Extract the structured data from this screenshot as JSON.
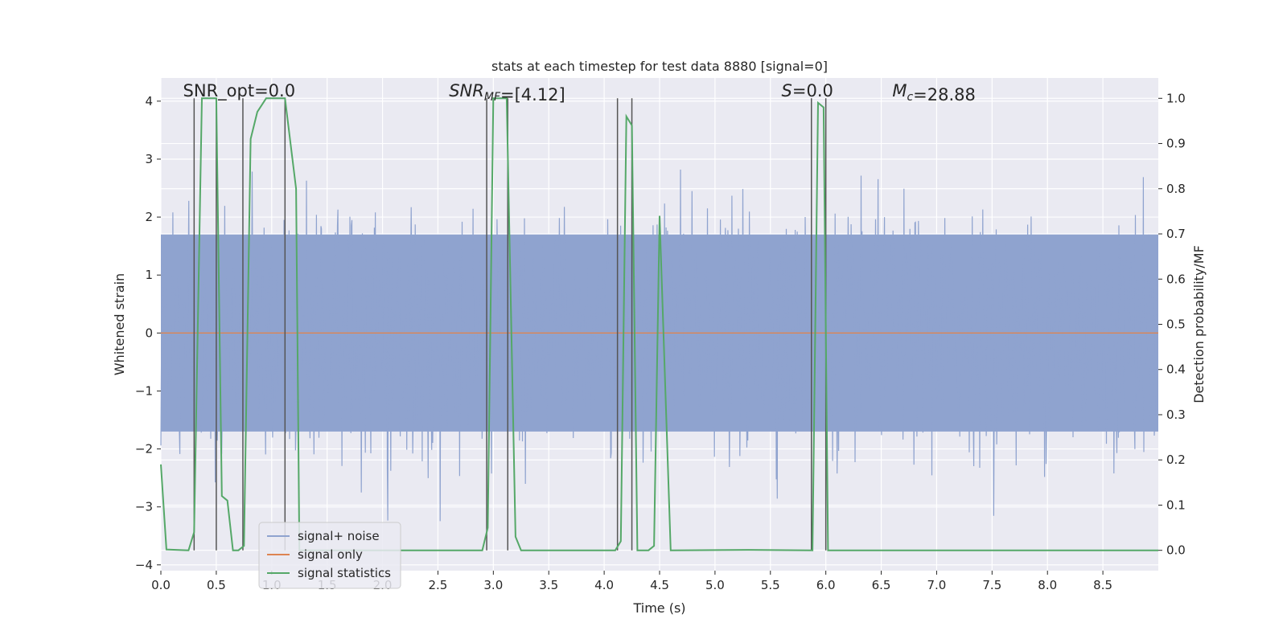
{
  "chart_data": {
    "type": "line",
    "title": "stats at each timestep for test data 8880 [signal=0]",
    "xlabel": "Time (s)",
    "ylabel": "Whitened strain",
    "y2label": "Detection probability/MF",
    "xlim": [
      0,
      9.0
    ],
    "ylim": [
      -4.1,
      4.4
    ],
    "y2lim": [
      -0.045,
      1.045
    ],
    "xticks": [
      0.0,
      0.5,
      1.0,
      1.5,
      2.0,
      2.5,
      3.0,
      3.5,
      4.0,
      4.5,
      5.0,
      5.5,
      6.0,
      6.5,
      7.0,
      7.5,
      8.0,
      8.5
    ],
    "xtick_labels": [
      "0.0",
      "0.5",
      "1.0",
      "1.5",
      "2.0",
      "2.5",
      "3.0",
      "3.5",
      "4.0",
      "4.5",
      "5.0",
      "5.5",
      "6.0",
      "6.5",
      "7.0",
      "7.5",
      "8.0",
      "8.5"
    ],
    "yticks": [
      -4,
      -3,
      -2,
      -1,
      0,
      1,
      2,
      3,
      4
    ],
    "ytick_labels": [
      "−4",
      "−3",
      "−2",
      "−1",
      "0",
      "1",
      "2",
      "3",
      "4"
    ],
    "y2ticks": [
      0.0,
      0.1,
      0.2,
      0.3,
      0.4,
      0.5,
      0.6,
      0.7,
      0.8,
      0.9,
      1.0
    ],
    "y2tick_labels": [
      "0.0",
      "0.1",
      "0.2",
      "0.3",
      "0.4",
      "0.5",
      "0.6",
      "0.7",
      "0.8",
      "0.9",
      "1.0"
    ],
    "annotations": [
      {
        "name": "snr-opt",
        "x": 0.2,
        "y": 4.05,
        "parts": [
          {
            "text": "SNR_opt=0.0",
            "style": "normal"
          }
        ]
      },
      {
        "name": "snr-mf",
        "x": 2.6,
        "y": 4.05,
        "parts": [
          {
            "text": "SNR",
            "style": "italic"
          },
          {
            "text": "MF",
            "style": "italic-sub"
          },
          {
            "text": "=[4.12]",
            "style": "normal"
          }
        ]
      },
      {
        "name": "s-value",
        "x": 5.6,
        "y": 4.05,
        "parts": [
          {
            "text": "S",
            "style": "italic"
          },
          {
            "text": "=0.0",
            "style": "normal"
          }
        ]
      },
      {
        "name": "chirp-mass",
        "x": 6.6,
        "y": 4.05,
        "parts": [
          {
            "text": "M",
            "style": "italic"
          },
          {
            "text": "c",
            "style": "italic-sub"
          },
          {
            "text": "=28.88",
            "style": "normal"
          }
        ]
      }
    ],
    "series": [
      {
        "name": "signal+ noise",
        "color": "#8fa3cf",
        "kind": "noise",
        "x_range": [
          0,
          9.0
        ],
        "core_amplitude": 1.7,
        "spike_max": 3.9
      },
      {
        "name": "signal only",
        "color": "#dd8452",
        "values": [
          [
            0,
            0
          ],
          [
            9.0,
            0
          ]
        ]
      },
      {
        "name": "signal statistics",
        "color": "#55a868",
        "axis": "right",
        "values": [
          [
            0.0,
            0.19
          ],
          [
            0.05,
            0.002
          ],
          [
            0.25,
            0.0
          ],
          [
            0.3,
            0.04
          ],
          [
            0.37,
            1.0
          ],
          [
            0.5,
            1.0
          ],
          [
            0.55,
            0.12
          ],
          [
            0.6,
            0.11
          ],
          [
            0.65,
            0.0
          ],
          [
            0.7,
            0.0
          ],
          [
            0.75,
            0.01
          ],
          [
            0.81,
            0.91
          ],
          [
            0.87,
            0.97
          ],
          [
            0.95,
            1.0
          ],
          [
            1.12,
            1.0
          ],
          [
            1.22,
            0.8
          ],
          [
            1.25,
            0.0
          ],
          [
            2.9,
            0.0
          ],
          [
            2.95,
            0.05
          ],
          [
            3.0,
            1.0
          ],
          [
            3.12,
            1.0
          ],
          [
            3.2,
            0.03
          ],
          [
            3.25,
            0.0
          ],
          [
            4.1,
            0.0
          ],
          [
            4.15,
            0.02
          ],
          [
            4.2,
            0.96
          ],
          [
            4.25,
            0.94
          ],
          [
            4.3,
            0.0
          ],
          [
            4.4,
            0.0
          ],
          [
            4.45,
            0.01
          ],
          [
            4.5,
            0.74
          ],
          [
            4.6,
            0.0
          ],
          [
            5.3,
            0.001
          ],
          [
            5.88,
            0.0
          ],
          [
            5.93,
            0.99
          ],
          [
            5.98,
            0.98
          ],
          [
            6.02,
            0.0
          ],
          [
            9.0,
            0.0
          ]
        ]
      }
    ],
    "vlines": [
      0.3,
      0.5,
      0.74,
      1.12,
      2.94,
      3.13,
      4.12,
      4.25,
      5.87,
      6.0
    ],
    "legend": {
      "position": "lower-left",
      "entries": [
        "signal+ noise",
        "signal only",
        "signal statistics"
      ]
    }
  }
}
